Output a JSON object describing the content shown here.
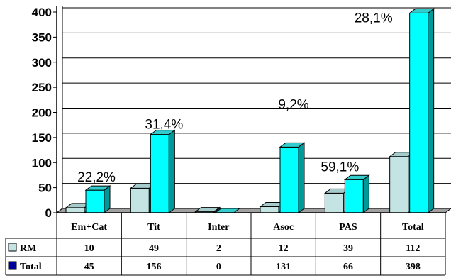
{
  "chart_data": {
    "type": "bar",
    "title": "",
    "xlabel": "",
    "ylabel": "",
    "ylim": [
      0,
      400
    ],
    "yticks": [
      "0",
      "50",
      "100",
      "150",
      "200",
      "250",
      "300",
      "350",
      "400"
    ],
    "grid": "horizontal",
    "legend": "table-left",
    "categories": [
      "Em+Cat",
      "Tit",
      "Inter",
      "Asoc",
      "PAS",
      "Total"
    ],
    "series": [
      {
        "name": "RM",
        "values": [
          10,
          49,
          2,
          12,
          39,
          112
        ],
        "labels": [
          "10",
          "49",
          "2",
          "12",
          "39",
          "112"
        ]
      },
      {
        "name": "Total",
        "values": [
          45,
          156,
          0,
          131,
          66,
          398
        ],
        "labels": [
          "45",
          "156",
          "0",
          "131",
          "66",
          "398"
        ]
      }
    ],
    "annotations": [
      "22,2%",
      "31,4%",
      "",
      "9,2%",
      "59,1%",
      "28,1%"
    ]
  },
  "colors": {
    "rm_front": "#c4e4e4",
    "rm_side": "#8ab2b2",
    "rm_top": "#a4cccc",
    "total_front": "#00ffff",
    "total_side": "#009999",
    "total_top": "#33cccc",
    "floor": "#a0a0a0",
    "legend_total": "#0000a0"
  }
}
